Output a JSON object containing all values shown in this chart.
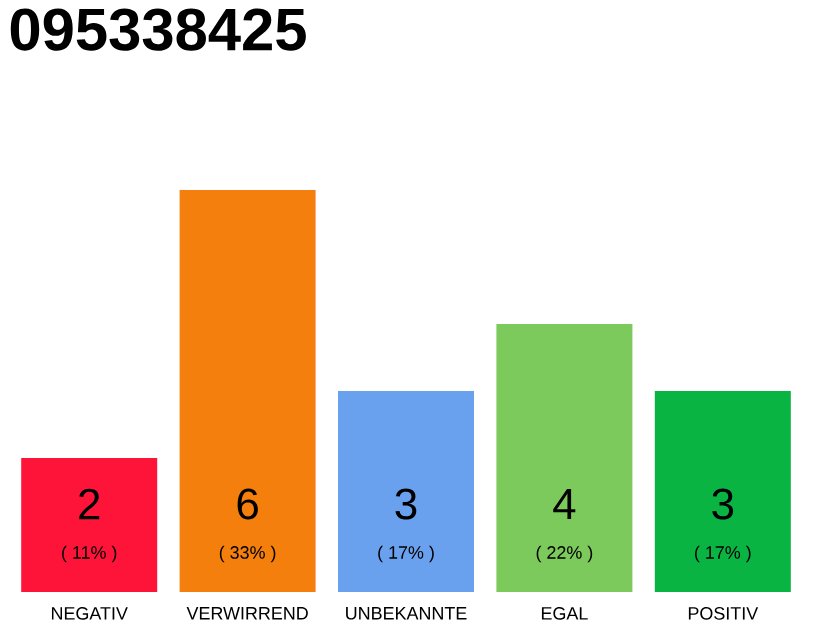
{
  "chart_data": {
    "type": "bar",
    "title": "095338425",
    "categories": [
      "NEGATIV",
      "VERWIRREND",
      "UNBEKANNTE",
      "EGAL",
      "POSITIV"
    ],
    "values": [
      2,
      6,
      3,
      4,
      3
    ],
    "colors": [
      "#ff1439",
      "#f57f0c",
      "#6aa1ee",
      "#7cc95c",
      "#0ab443"
    ],
    "value_labels": [
      "2",
      "6",
      "3",
      "4",
      "3"
    ],
    "annotations": [
      "( 11% )",
      "( 33% )",
      "( 17% )",
      "( 22% )",
      "( 17% )"
    ]
  }
}
